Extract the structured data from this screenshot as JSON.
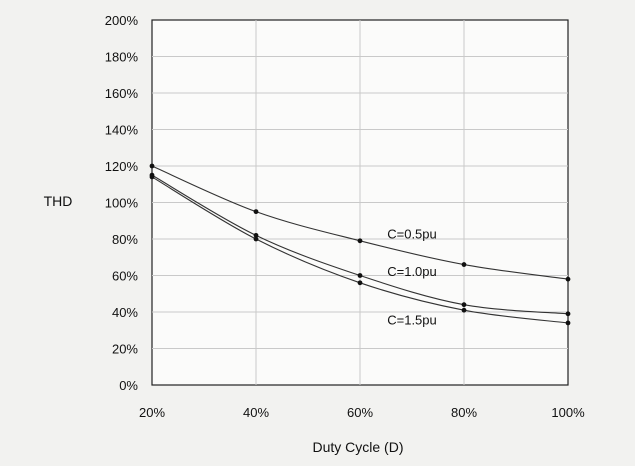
{
  "chart_data": {
    "type": "line",
    "title": "",
    "xlabel": "Duty Cycle (D)",
    "ylabel": "THD",
    "x": [
      20,
      40,
      60,
      80,
      100
    ],
    "x_tick_labels": [
      "20%",
      "40%",
      "60%",
      "80%",
      "100%"
    ],
    "y_tick_labels": [
      "0%",
      "20%",
      "40%",
      "60%",
      "80%",
      "100%",
      "120%",
      "140%",
      "160%",
      "180%",
      "200%"
    ],
    "xlim": [
      20,
      100
    ],
    "ylim": [
      0,
      200
    ],
    "grid": true,
    "legend": "none",
    "series": [
      {
        "name": "C=0.5pu",
        "values": [
          120,
          95,
          79,
          66,
          58
        ]
      },
      {
        "name": "C=1.0pu",
        "values": [
          115,
          82,
          60,
          44,
          39
        ]
      },
      {
        "name": "C=1.5pu",
        "values": [
          114,
          80,
          56,
          41,
          34
        ]
      }
    ]
  }
}
